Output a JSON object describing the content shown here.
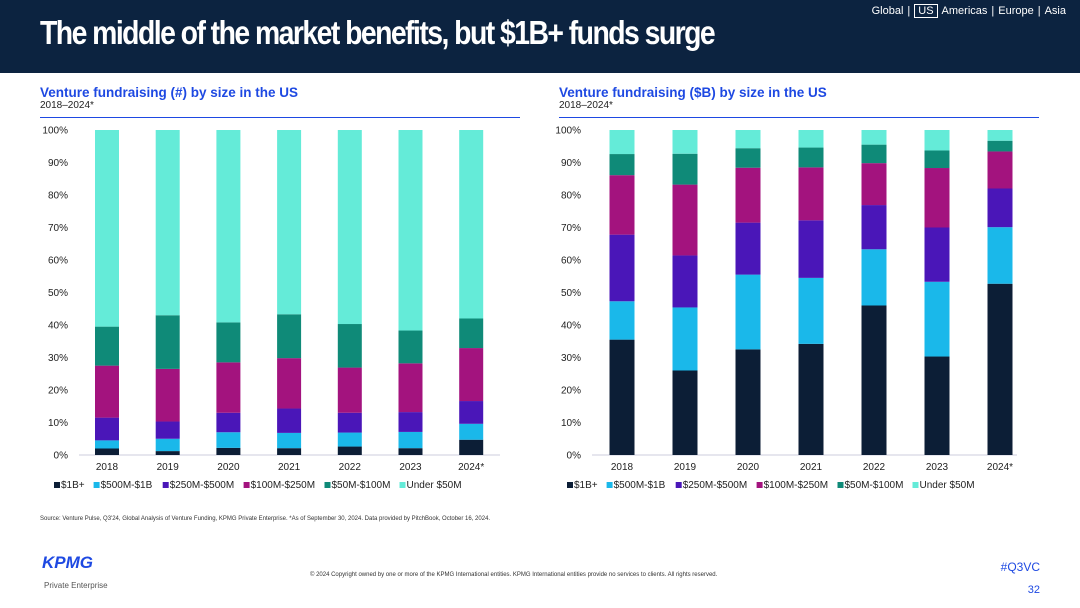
{
  "header": {
    "title": "The middle of the market benefits, but $1B+ funds surge",
    "nav": [
      "Global",
      "US",
      "Americas",
      "Europe",
      "Asia"
    ],
    "nav_selected": "US"
  },
  "colors": [
    "#0c1e36",
    "#1ab8ea",
    "#4a16b8",
    "#a3137e",
    "#0f8a78",
    "#64ebd8"
  ],
  "chart_data": [
    {
      "type": "bar",
      "stacked": true,
      "title": "Venture fundraising (#) by size in the US",
      "subtitle": "2018–2024*",
      "categories": [
        "2018",
        "2019",
        "2020",
        "2021",
        "2022",
        "2023",
        "2024*"
      ],
      "ylim": [
        0,
        100
      ],
      "yticks": [
        "0%",
        "10%",
        "20%",
        "30%",
        "40%",
        "50%",
        "60%",
        "70%",
        "80%",
        "90%",
        "100%"
      ],
      "legend_position": "bottom",
      "series": [
        {
          "name": "$1B+",
          "values": [
            2,
            1.2,
            2.2,
            2.1,
            2.6,
            2.1,
            4.7
          ]
        },
        {
          "name": "$500M-$1B",
          "values": [
            2.5,
            3.8,
            4.8,
            4.7,
            4.3,
            5,
            4.9
          ]
        },
        {
          "name": "$250M-$500M",
          "values": [
            7,
            5.3,
            6,
            7.5,
            6.1,
            6.1,
            7
          ]
        },
        {
          "name": "$100M-$250M",
          "values": [
            16,
            16.2,
            15.5,
            15.5,
            13.9,
            15,
            16.3
          ]
        },
        {
          "name": "$50M-$100M",
          "values": [
            12,
            16.5,
            12.3,
            13.5,
            13.4,
            10.1,
            9.1
          ]
        },
        {
          "name": "Under $50M",
          "values": [
            60.5,
            57,
            59.2,
            56.7,
            59.7,
            61.7,
            58
          ]
        }
      ]
    },
    {
      "type": "bar",
      "stacked": true,
      "title": "Venture fundraising ($B) by size in the US",
      "subtitle": "2018–2024*",
      "categories": [
        "2018",
        "2019",
        "2020",
        "2021",
        "2022",
        "2023",
        "2024*"
      ],
      "ylim": [
        0,
        100
      ],
      "yticks": [
        "0%",
        "10%",
        "20%",
        "30%",
        "40%",
        "50%",
        "60%",
        "70%",
        "80%",
        "90%",
        "100%"
      ],
      "legend_position": "bottom",
      "series": [
        {
          "name": "$1B+",
          "values": [
            35.5,
            26,
            32.5,
            34.2,
            46,
            30.3,
            52.7
          ]
        },
        {
          "name": "$500M-$1B",
          "values": [
            11.8,
            19.4,
            23,
            20.3,
            17.3,
            23,
            17.4
          ]
        },
        {
          "name": "$250M-$500M",
          "values": [
            20.5,
            16,
            16,
            17.7,
            13.6,
            16.7,
            11.9
          ]
        },
        {
          "name": "$100M-$250M",
          "values": [
            18.3,
            21.8,
            16.9,
            16.3,
            12.9,
            18.3,
            11.4
          ]
        },
        {
          "name": "$50M-$100M",
          "values": [
            6.5,
            9.5,
            6,
            6.1,
            5.7,
            5.4,
            3.3
          ]
        },
        {
          "name": "Under $50M",
          "values": [
            7.4,
            7.3,
            5.6,
            5.4,
            4.5,
            6.3,
            3.3
          ]
        }
      ]
    }
  ],
  "footer": {
    "source": "Source: Venture Pulse, Q3'24, Global Analysis of Venture Funding, KPMG Private Enterprise. *As of September 30, 2024. Data provided by PitchBook, October 16, 2024.",
    "copyright": "© 2024 Copyright owned by one or more of the KPMG International entities. KPMG International entities provide no services to clients. All rights reserved.",
    "logo": "KPMG",
    "logo_sub": "Private Enterprise",
    "hashtag": "#Q3VC",
    "page": "32"
  }
}
